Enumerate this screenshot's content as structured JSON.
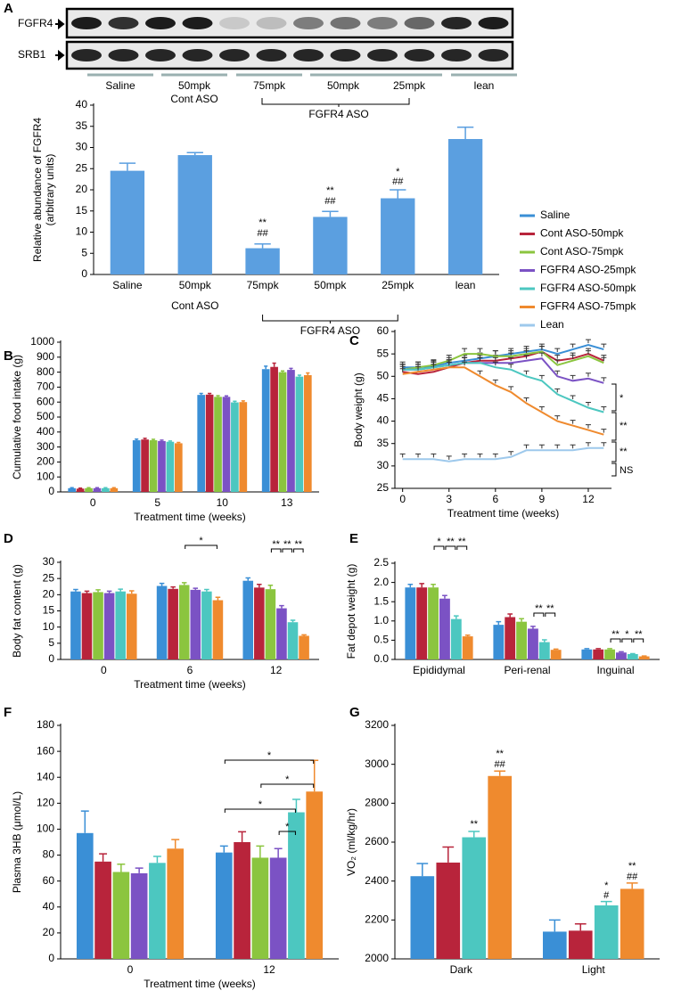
{
  "blot": {
    "panel": "A",
    "rows": [
      "FGFR4",
      "SRB1"
    ],
    "lanes": [
      "Saline",
      "50mpk",
      "75mpk",
      "50mpk",
      "25mpk",
      "lean"
    ],
    "group_labels": [
      "Cont ASO",
      "FGFR4 ASO"
    ]
  },
  "chart_data": [
    {
      "type": "bar",
      "ylabel": [
        "Relative abundance of FGFR4",
        "(arbitrary units)"
      ],
      "categories": [
        "Saline",
        "50mpk",
        "75mpk",
        "50mpk",
        "25mpk",
        "lean"
      ],
      "values": [
        24.5,
        28.2,
        6.2,
        13.6,
        18.0,
        32.0
      ],
      "errors": [
        1.8,
        0.6,
        1.0,
        1.3,
        2.0,
        2.8
      ],
      "color": "#5b9fe0",
      "ylim": [
        0,
        40
      ],
      "yticks": [
        0,
        5,
        10,
        15,
        20,
        25,
        30,
        35,
        40
      ],
      "group_labels": [
        "Cont ASO",
        "FGFR4 ASO"
      ],
      "annotations": [
        "**",
        "##",
        "**",
        "##",
        "*",
        "##"
      ]
    },
    {
      "panel": "B",
      "type": "bar",
      "xlabel": "Treatment time (weeks)",
      "ylabel": "Cumulative food intake (g)",
      "categories": [
        "0",
        "5",
        "10",
        "13"
      ],
      "series": [
        {
          "color": "#3a8fd6",
          "values": [
            25,
            345,
            648,
            820
          ],
          "errors": [
            3,
            8,
            10,
            20
          ]
        },
        {
          "color": "#b8243b",
          "values": [
            22,
            350,
            650,
            835
          ],
          "errors": [
            3,
            8,
            8,
            25
          ]
        },
        {
          "color": "#8bc53f",
          "values": [
            25,
            345,
            635,
            800
          ],
          "errors": [
            3,
            6,
            8,
            8
          ]
        },
        {
          "color": "#7b52c4",
          "values": [
            25,
            340,
            635,
            815
          ],
          "errors": [
            3,
            6,
            6,
            10
          ]
        },
        {
          "color": "#4cc7c0",
          "values": [
            25,
            335,
            598,
            770
          ],
          "errors": [
            3,
            5,
            8,
            10
          ]
        },
        {
          "color": "#ef8a2e",
          "values": [
            25,
            325,
            600,
            780
          ],
          "errors": [
            3,
            5,
            8,
            15
          ]
        }
      ],
      "ylim": [
        0,
        1000
      ],
      "yticks": [
        0,
        100,
        200,
        300,
        400,
        500,
        600,
        700,
        800,
        900,
        1000
      ]
    },
    {
      "panel": "C",
      "type": "line",
      "xlabel": "Treatment time (weeks)",
      "ylabel": "Body weight (g)",
      "x": [
        0,
        1,
        2,
        3,
        4,
        5,
        6,
        7,
        8,
        9,
        10,
        11,
        12,
        13
      ],
      "xlim": [
        -0.5,
        13.5
      ],
      "xticks": [
        0,
        3,
        6,
        9,
        12
      ],
      "ylim": [
        25,
        60
      ],
      "yticks": [
        25,
        30,
        35,
        40,
        45,
        50,
        55,
        60
      ],
      "series": [
        {
          "name": "Saline",
          "color": "#3a8fd6",
          "values": [
            52,
            52,
            52.3,
            53,
            53.5,
            54,
            54.5,
            55,
            55.5,
            56,
            55,
            56,
            57,
            56
          ]
        },
        {
          "name": "Cont ASO-50mpk",
          "color": "#b8243b",
          "values": [
            51,
            50.5,
            51,
            52,
            53,
            53.5,
            53.5,
            54,
            54.5,
            55.5,
            53.5,
            54,
            55,
            53.5
          ]
        },
        {
          "name": "Cont ASO-75mpk",
          "color": "#8bc53f",
          "values": [
            51.5,
            52,
            52.5,
            53.5,
            55,
            55,
            54.5,
            54.5,
            55,
            55.5,
            52.5,
            53.5,
            54.5,
            53
          ]
        },
        {
          "name": "FGFR4 ASO-25mpk",
          "color": "#7b52c4",
          "values": [
            51.5,
            51.5,
            52,
            52.5,
            53,
            53,
            53,
            53,
            53.5,
            54,
            50,
            49,
            49.5,
            48.5
          ]
        },
        {
          "name": "FGFR4 ASO-50mpk",
          "color": "#4cc7c0",
          "values": [
            51.5,
            51.5,
            52,
            52.5,
            53,
            53,
            52,
            51.5,
            50,
            49,
            46,
            44.5,
            43,
            42
          ]
        },
        {
          "name": "FGFR4 ASO-75mpk",
          "color": "#ef8a2e",
          "values": [
            50.5,
            51,
            51.5,
            52,
            52,
            50,
            48,
            46.5,
            44,
            42,
            40,
            39,
            38,
            37
          ]
        },
        {
          "name": "Lean",
          "color": "#9ec9ec",
          "values": [
            31.5,
            31.5,
            31.5,
            31,
            31.5,
            31.5,
            31.5,
            32,
            33.5,
            33.5,
            33.5,
            33.5,
            34,
            34
          ]
        }
      ],
      "annotations": [
        "*",
        "**",
        "**",
        "NS"
      ]
    },
    {
      "panel": "D",
      "type": "bar",
      "xlabel": "Treatment time (weeks)",
      "ylabel": "Body fat content (g)",
      "categories": [
        "0",
        "6",
        "12"
      ],
      "series": [
        {
          "color": "#3a8fd6",
          "values": [
            21,
            22.7,
            24.3
          ],
          "errors": [
            0.6,
            0.8,
            0.9
          ]
        },
        {
          "color": "#b8243b",
          "values": [
            20.5,
            21.8,
            22.2
          ],
          "errors": [
            0.6,
            0.6,
            1.0
          ]
        },
        {
          "color": "#8bc53f",
          "values": [
            20.8,
            23,
            21.7
          ],
          "errors": [
            0.7,
            0.7,
            1.2
          ]
        },
        {
          "color": "#7b52c4",
          "values": [
            20.5,
            21.5,
            15.8
          ],
          "errors": [
            0.6,
            0.5,
            0.8
          ]
        },
        {
          "color": "#4cc7c0",
          "values": [
            21,
            21,
            11.5
          ],
          "errors": [
            0.7,
            0.6,
            0.6
          ]
        },
        {
          "color": "#ef8a2e",
          "values": [
            20.3,
            18.3,
            7.3
          ],
          "errors": [
            0.9,
            0.9,
            0.3
          ]
        }
      ],
      "ylim": [
        0,
        30
      ],
      "yticks": [
        0,
        5,
        10,
        15,
        20,
        25,
        30
      ],
      "annotations": [
        "*",
        "**",
        "**",
        "**"
      ]
    },
    {
      "panel": "E",
      "type": "bar",
      "ylabel": "Fat depot weight (g)",
      "categories": [
        "Epididymal",
        "Peri-renal",
        "Inguinal"
      ],
      "series": [
        {
          "color": "#3a8fd6",
          "values": [
            1.87,
            0.9,
            0.26
          ],
          "errors": [
            0.08,
            0.08,
            0.02
          ]
        },
        {
          "color": "#b8243b",
          "values": [
            1.87,
            1.1,
            0.26
          ],
          "errors": [
            0.1,
            0.08,
            0.02
          ]
        },
        {
          "color": "#8bc53f",
          "values": [
            1.87,
            0.98,
            0.26
          ],
          "errors": [
            0.08,
            0.08,
            0.02
          ]
        },
        {
          "color": "#7b52c4",
          "values": [
            1.58,
            0.8,
            0.18
          ],
          "errors": [
            0.08,
            0.06,
            0.02
          ]
        },
        {
          "color": "#4cc7c0",
          "values": [
            1.05,
            0.45,
            0.14
          ],
          "errors": [
            0.08,
            0.06,
            0.01
          ]
        },
        {
          "color": "#ef8a2e",
          "values": [
            0.6,
            0.25,
            0.08
          ],
          "errors": [
            0.03,
            0.02,
            0.01
          ]
        }
      ],
      "ylim": [
        0,
        2.5
      ],
      "yticks": [
        {
          "value": 0,
          "label": "0.0"
        },
        0.5,
        {
          "value": 1,
          "label": "1.0"
        },
        1.5,
        {
          "value": 2,
          "label": "2.0"
        },
        2.5
      ],
      "annotations": [
        "*",
        "**",
        "**",
        "**",
        "**",
        "**",
        "*",
        "**"
      ]
    },
    {
      "panel": "F",
      "type": "bar",
      "xlabel": "Treatment time (weeks)",
      "ylabel": "Plasma 3HB (μmol/L)",
      "categories": [
        "0",
        "12"
      ],
      "series": [
        {
          "color": "#3a8fd6",
          "values": [
            97,
            82
          ],
          "errors": [
            17,
            5
          ]
        },
        {
          "color": "#b8243b",
          "values": [
            75,
            90
          ],
          "errors": [
            6,
            8
          ]
        },
        {
          "color": "#8bc53f",
          "values": [
            67,
            78
          ],
          "errors": [
            6,
            9
          ]
        },
        {
          "color": "#7b52c4",
          "values": [
            66,
            78
          ],
          "errors": [
            4,
            7
          ]
        },
        {
          "color": "#4cc7c0",
          "values": [
            74,
            113
          ],
          "errors": [
            5,
            10
          ]
        },
        {
          "color": "#ef8a2e",
          "values": [
            85,
            129
          ],
          "errors": [
            7,
            24
          ]
        }
      ],
      "ylim": [
        0,
        180
      ],
      "yticks": [
        0,
        20,
        40,
        60,
        80,
        100,
        120,
        140,
        160,
        180
      ],
      "annotations": [
        "*",
        "*",
        "*",
        "*"
      ]
    },
    {
      "panel": "G",
      "type": "bar",
      "ylabel": "VO₂ (ml/kg/hr)",
      "categories": [
        "Dark",
        "Light"
      ],
      "series": [
        {
          "color": "#3a8fd6",
          "values": [
            2425,
            2140
          ],
          "errors": [
            65,
            60
          ]
        },
        {
          "color": "#b8243b",
          "values": [
            2495,
            2145
          ],
          "errors": [
            80,
            35
          ]
        },
        {
          "color": "#4cc7c0",
          "values": [
            2625,
            2275
          ],
          "errors": [
            30,
            20
          ]
        },
        {
          "color": "#ef8a2e",
          "values": [
            2940,
            2360
          ],
          "errors": [
            25,
            30
          ]
        }
      ],
      "ylim": [
        2000,
        3200
      ],
      "yticks": [
        2000,
        2200,
        2400,
        2600,
        2800,
        3000,
        3200
      ],
      "annotations": [
        "**",
        "**",
        "##",
        "*",
        "#",
        "**",
        "##"
      ]
    }
  ]
}
